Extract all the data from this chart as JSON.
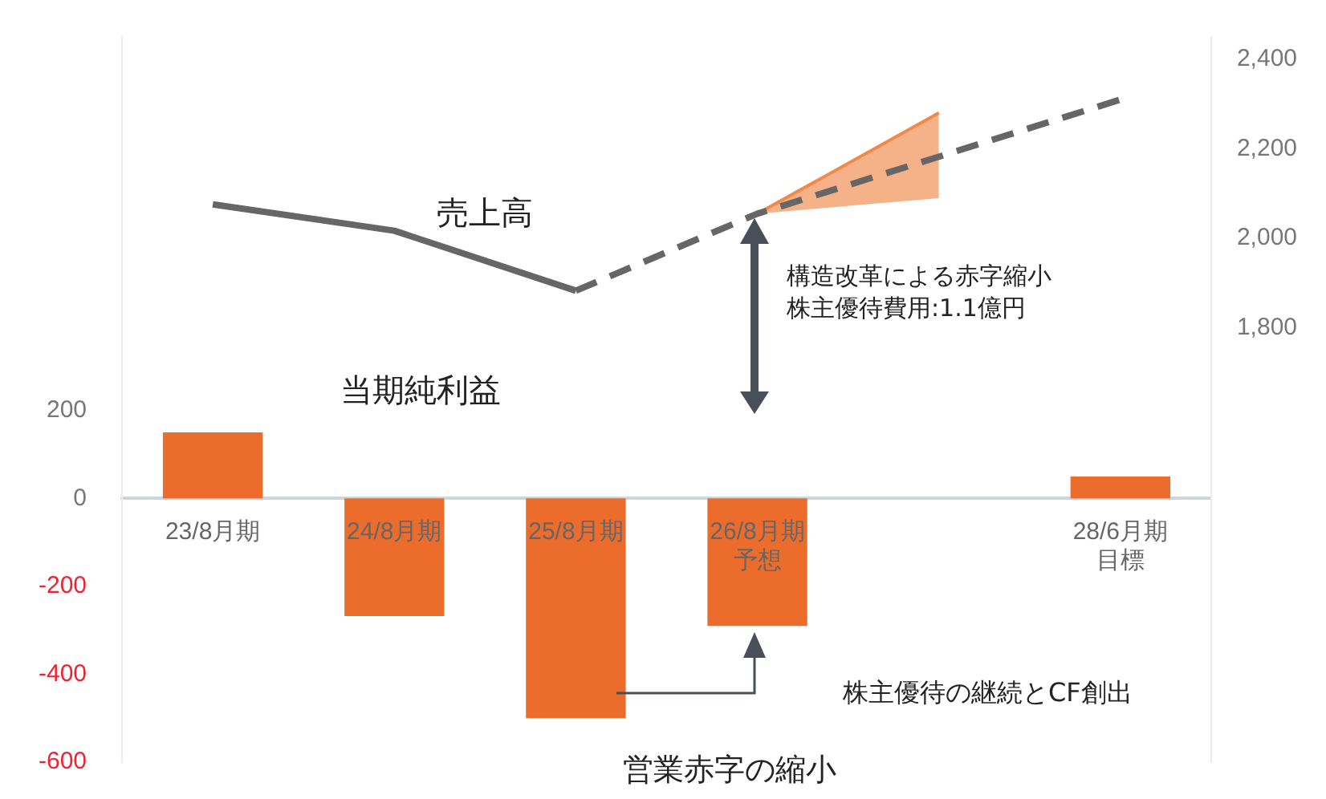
{
  "chart_data": {
    "type": "bar",
    "categories": [
      "23/8月期",
      "24/8月期",
      "25/8月期",
      "26/8月期予想",
      null,
      "28/6月期目標"
    ],
    "series": [
      {
        "name": "当期純利益",
        "color": "#ec6c2c",
        "values": [
          150,
          -268,
          -500,
          -290,
          null,
          50
        ]
      },
      {
        "name": "売上高",
        "type": "line",
        "axis": "y2",
        "color": "#666666",
        "line_style": "solid",
        "values": [
          2076,
          2017,
          1883,
          null,
          null,
          null
        ]
      },
      {
        "type": "line",
        "axis": "y2",
        "color": "#666666",
        "line_style": "dashed",
        "values": [
          null,
          null,
          1883,
          2055,
          null,
          2310
        ]
      },
      {
        "type": "line",
        "axis": "y2",
        "color": "#f08a4b",
        "values": [
          null,
          null,
          null,
          2055,
          2280,
          null
        ],
        "lower": [
          null,
          null,
          null,
          2055,
          2090,
          null
        ],
        "upper": [
          null,
          null,
          null,
          2055,
          2280,
          null
        ]
      }
    ],
    "ylim": [
      -600,
      1050
    ],
    "yticks": [
      200,
      0,
      -200,
      -400,
      -600
    ],
    "y2lim": [
      830,
      2450
    ],
    "y2ticks": [
      {
        "value": 1800,
        "label": "1,800"
      },
      {
        "value": 2000,
        "label": "2,000"
      },
      {
        "value": 2200,
        "label": "2,200"
      },
      {
        "value": 2400,
        "label": "2,400"
      }
    ],
    "grid": false,
    "legend": false,
    "marker": "none",
    "annotations": [
      "構造改革による赤字縮小株主優待費用:1.1億円",
      "株主優待の継続とCF創出",
      "営業赤字の縮小"
    ]
  }
}
